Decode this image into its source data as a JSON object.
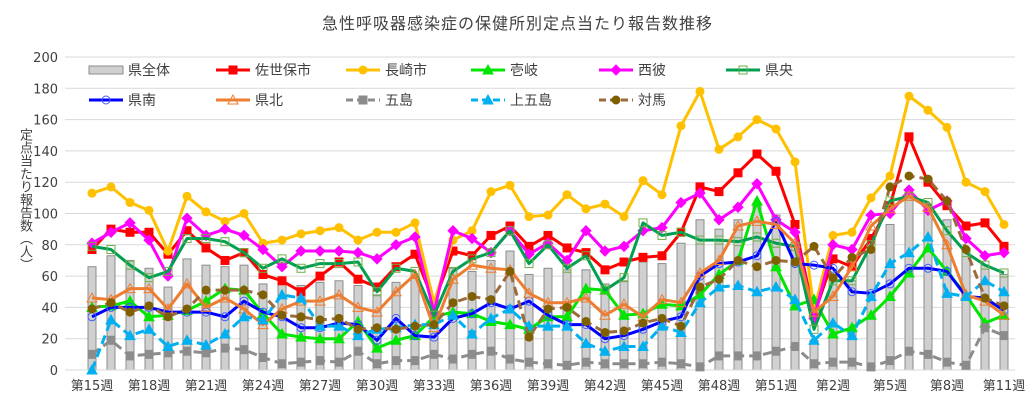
{
  "chart_data": {
    "type": "bar+line",
    "title": "急性呼吸器感染症の保健所別定点当たり報告数推移",
    "ylabel": "定点当たり報告数（人）",
    "xlabel": "",
    "ylim": [
      0,
      200
    ],
    "yticks": [
      0,
      20,
      40,
      60,
      80,
      100,
      120,
      140,
      160,
      180,
      200
    ],
    "grid": true,
    "legend_placement": "top",
    "x": [
      "第15週",
      "第16週",
      "第17週",
      "第18週",
      "第19週",
      "第20週",
      "第21週",
      "第22週",
      "第23週",
      "第24週",
      "第25週",
      "第26週",
      "第27週",
      "第28週",
      "第29週",
      "第30週",
      "第31週",
      "第32週",
      "第33週",
      "第34週",
      "第35週",
      "第36週",
      "第37週",
      "第38週",
      "第39週",
      "第40週",
      "第41週",
      "第42週",
      "第43週",
      "第44週",
      "第45週",
      "第46週",
      "第47週",
      "第48週",
      "第49週",
      "第50週",
      "第51週",
      "第52週",
      "第1週",
      "第2週",
      "第3週",
      "第4週",
      "第5週",
      "第6週",
      "第7週",
      "第8週",
      "第9週",
      "第10週",
      "第11週"
    ],
    "xtick_labels": [
      "第15週",
      "第18週",
      "第21週",
      "第24週",
      "第27週",
      "第30週",
      "第33週",
      "第36週",
      "第39週",
      "第42週",
      "第45週",
      "第48週",
      "第51週",
      "第2週",
      "第5週",
      "第8週",
      "第11週"
    ],
    "series": [
      {
        "name": "県全体",
        "kind": "bar",
        "color": "#D0D0D0",
        "values": [
          66,
          73,
          70,
          65,
          53,
          71,
          67,
          66,
          67,
          55,
          57,
          54,
          56,
          57,
          54,
          48,
          56,
          59,
          34,
          65,
          63,
          70,
          76,
          61,
          65,
          64,
          64,
          55,
          57,
          69,
          68,
          81,
          96,
          90,
          96,
          105,
          99,
          79,
          19,
          57,
          57,
          77,
          93,
          111,
          106,
          96,
          76,
          67,
          61
        ]
      },
      {
        "name": "佐世保市",
        "kind": "line",
        "color": "#FF0000",
        "marker": "square",
        "dash": false,
        "values": [
          77,
          90,
          88,
          88,
          74,
          89,
          78,
          70,
          75,
          61,
          57,
          50,
          60,
          69,
          58,
          53,
          66,
          74,
          43,
          76,
          73,
          86,
          92,
          79,
          86,
          78,
          75,
          64,
          69,
          72,
          73,
          88,
          117,
          114,
          126,
          138,
          127,
          93,
          35,
          71,
          66,
          84,
          105,
          149,
          120,
          105,
          92,
          94,
          79
        ]
      },
      {
        "name": "長崎市",
        "kind": "line",
        "color": "#FFC000",
        "marker": "circle",
        "dash": false,
        "values": [
          113,
          117,
          107,
          102,
          76,
          111,
          101,
          95,
          100,
          81,
          83,
          87,
          89,
          91,
          83,
          88,
          88,
          94,
          43,
          83,
          89,
          114,
          118,
          98,
          99,
          112,
          103,
          106,
          98,
          121,
          112,
          156,
          178,
          141,
          149,
          160,
          154,
          133,
          38,
          86,
          88,
          110,
          124,
          175,
          166,
          155,
          120,
          114,
          93
        ]
      },
      {
        "name": "壱岐",
        "kind": "line",
        "color": "#00E600",
        "marker": "triangle",
        "dash": false,
        "values": [
          40,
          41,
          44,
          34,
          35,
          38,
          44,
          52,
          51,
          36,
          23,
          21,
          20,
          20,
          31,
          14,
          19,
          22,
          34,
          37,
          36,
          31,
          29,
          26,
          34,
          34,
          52,
          51,
          35,
          36,
          42,
          41,
          48,
          61,
          70,
          108,
          66,
          41,
          45,
          23,
          27,
          35,
          47,
          62,
          78,
          63,
          48,
          30,
          35
        ]
      },
      {
        "name": "西彼",
        "kind": "line",
        "color": "#FF00FF",
        "marker": "diamond",
        "dash": false,
        "values": [
          81,
          88,
          94,
          83,
          60,
          97,
          86,
          90,
          86,
          77,
          66,
          76,
          76,
          76,
          75,
          71,
          80,
          85,
          37,
          89,
          84,
          75,
          89,
          74,
          81,
          70,
          89,
          76,
          79,
          89,
          91,
          107,
          113,
          96,
          104,
          119,
          96,
          88,
          33,
          80,
          77,
          99,
          100,
          115,
          102,
          108,
          84,
          73,
          75
        ]
      },
      {
        "name": "県央",
        "kind": "line",
        "color": "#00A050",
        "marker": "square-open",
        "dash": false,
        "values": [
          79,
          77,
          67,
          59,
          63,
          84,
          84,
          82,
          75,
          65,
          71,
          65,
          68,
          68,
          69,
          50,
          65,
          63,
          35,
          63,
          71,
          75,
          89,
          68,
          80,
          65,
          73,
          51,
          59,
          94,
          86,
          88,
          83,
          83,
          82,
          85,
          81,
          79,
          26,
          57,
          57,
          80,
          108,
          111,
          107,
          89,
          75,
          67,
          62
        ]
      },
      {
        "name": "県南",
        "kind": "line",
        "color": "#0000FF",
        "marker": "circle-open",
        "dash": false,
        "values": [
          34,
          40,
          40,
          40,
          37,
          37,
          37,
          34,
          44,
          37,
          34,
          27,
          27,
          30,
          29,
          19,
          33,
          22,
          21,
          33,
          36,
          43,
          39,
          44,
          35,
          29,
          29,
          20,
          22,
          26,
          31,
          34,
          60,
          68,
          69,
          73,
          95,
          68,
          67,
          65,
          50,
          49,
          55,
          65,
          65,
          63,
          47,
          46,
          38
        ]
      },
      {
        "name": "県北",
        "kind": "line",
        "color": "#ED7D31",
        "marker": "triangle-open",
        "dash": false,
        "values": [
          46,
          45,
          52,
          52,
          39,
          55,
          40,
          46,
          39,
          29,
          39,
          44,
          44,
          48,
          40,
          37,
          50,
          61,
          27,
          58,
          67,
          65,
          64,
          49,
          43,
          43,
          46,
          35,
          42,
          34,
          45,
          43,
          62,
          70,
          92,
          95,
          93,
          81,
          37,
          47,
          66,
          92,
          103,
          111,
          104,
          80,
          48,
          44,
          35
        ]
      },
      {
        "name": "五島",
        "kind": "line",
        "color": "#8C8C8C",
        "marker": "square",
        "dash": true,
        "values": [
          10,
          19,
          9,
          10,
          11,
          12,
          11,
          14,
          13,
          8,
          4,
          5,
          6,
          5,
          12,
          4,
          6,
          6,
          10,
          7,
          10,
          12,
          7,
          5,
          4,
          3,
          5,
          4,
          4,
          4,
          5,
          4,
          2,
          9,
          9,
          9,
          12,
          15,
          4,
          5,
          5,
          2,
          6,
          12,
          10,
          5,
          3,
          27,
          22
        ]
      },
      {
        "name": "上五島",
        "kind": "line",
        "color": "#00B0F0",
        "marker": "triangle",
        "dash": true,
        "values": [
          0,
          32,
          22,
          26,
          15,
          19,
          16,
          23,
          34,
          32,
          48,
          46,
          28,
          28,
          22,
          26,
          27,
          29,
          29,
          35,
          23,
          33,
          39,
          28,
          28,
          28,
          17,
          12,
          15,
          15,
          28,
          24,
          43,
          53,
          54,
          50,
          53,
          45,
          19,
          30,
          22,
          47,
          68,
          75,
          85,
          49,
          47,
          57,
          50
        ]
      },
      {
        "name": "対馬",
        "kind": "line",
        "color": "#9C6B3C",
        "marker_color": "#7F6000",
        "marker": "circle",
        "dash": true,
        "values": [
          39,
          43,
          37,
          41,
          34,
          39,
          51,
          51,
          51,
          48,
          35,
          34,
          32,
          33,
          26,
          27,
          26,
          28,
          29,
          43,
          47,
          45,
          63,
          21,
          39,
          40,
          31,
          24,
          25,
          30,
          33,
          28,
          53,
          58,
          70,
          66,
          70,
          69,
          79,
          59,
          72,
          77,
          117,
          124,
          122,
          108,
          77,
          46,
          41
        ]
      }
    ]
  }
}
